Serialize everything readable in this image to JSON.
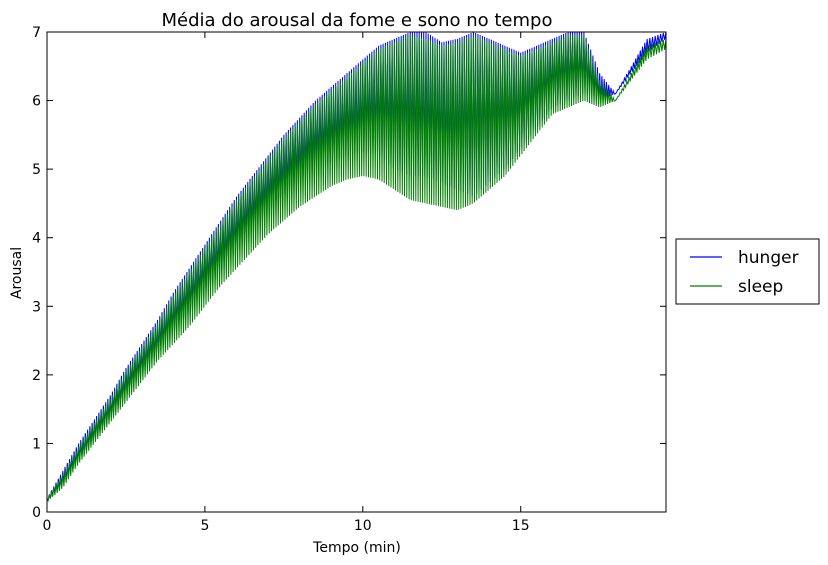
{
  "chart_data": {
    "type": "line",
    "title": "Média do arousal da fome e sono no tempo",
    "xlabel": "Tempo (min)",
    "ylabel": "Arousal",
    "xlim": [
      0,
      19.6
    ],
    "ylim": [
      0,
      7
    ],
    "xticks": [
      0,
      5,
      10,
      15
    ],
    "yticks": [
      0,
      1,
      2,
      3,
      4,
      5,
      6,
      7
    ],
    "grid": false,
    "legend_position": "right",
    "series": [
      {
        "name": "hunger",
        "color": "#0000ff",
        "x": [
          0,
          0.5,
          1,
          1.5,
          2,
          2.5,
          3,
          3.5,
          4,
          4.5,
          5,
          5.5,
          6,
          6.5,
          7,
          7.5,
          8,
          8.5,
          9,
          9.5,
          10,
          10.5,
          11,
          11.5,
          12,
          12.5,
          13,
          13.5,
          14,
          14.5,
          15,
          15.5,
          16,
          16.5,
          17,
          17.5,
          18,
          18.5,
          19,
          19.6
        ],
        "upper": [
          0.2,
          0.6,
          1.0,
          1.35,
          1.7,
          2.1,
          2.45,
          2.8,
          3.2,
          3.55,
          3.9,
          4.25,
          4.6,
          4.9,
          5.2,
          5.5,
          5.75,
          6.0,
          6.2,
          6.4,
          6.6,
          6.8,
          6.9,
          7.0,
          7.0,
          6.85,
          6.9,
          7.0,
          6.9,
          6.8,
          6.7,
          6.8,
          6.9,
          7.0,
          7.0,
          6.4,
          6.1,
          6.5,
          6.9,
          7.0
        ],
        "lower": [
          0.15,
          0.4,
          0.75,
          1.05,
          1.35,
          1.7,
          2.0,
          2.3,
          2.6,
          2.9,
          3.2,
          3.5,
          3.8,
          4.1,
          4.35,
          4.6,
          4.8,
          5.0,
          5.1,
          5.2,
          5.25,
          5.2,
          5.0,
          4.9,
          4.9,
          4.8,
          4.7,
          4.6,
          4.8,
          5.0,
          5.3,
          5.6,
          5.9,
          6.0,
          6.1,
          6.0,
          6.1,
          6.4,
          6.7,
          6.9
        ]
      },
      {
        "name": "sleep",
        "color": "#008000",
        "x": [
          0,
          0.5,
          1,
          1.5,
          2,
          2.5,
          3,
          3.5,
          4,
          4.5,
          5,
          5.5,
          6,
          6.5,
          7,
          7.5,
          8,
          8.5,
          9,
          9.5,
          10,
          10.5,
          11,
          11.5,
          12,
          12.5,
          13,
          13.5,
          14,
          14.5,
          15,
          15.5,
          16,
          16.5,
          17,
          17.5,
          18,
          18.5,
          19,
          19.6
        ],
        "upper": [
          0.2,
          0.55,
          0.95,
          1.3,
          1.65,
          2.05,
          2.4,
          2.75,
          3.15,
          3.5,
          3.85,
          4.2,
          4.55,
          4.85,
          5.15,
          5.45,
          5.7,
          5.95,
          6.15,
          6.35,
          6.55,
          6.75,
          6.85,
          6.95,
          6.9,
          6.8,
          6.85,
          6.95,
          6.85,
          6.75,
          6.65,
          6.75,
          6.85,
          6.95,
          6.95,
          6.3,
          6.0,
          6.4,
          6.8,
          6.9
        ],
        "lower": [
          0.15,
          0.35,
          0.7,
          1.0,
          1.3,
          1.6,
          1.9,
          2.2,
          2.45,
          2.7,
          3.0,
          3.3,
          3.55,
          3.8,
          4.05,
          4.25,
          4.45,
          4.6,
          4.75,
          4.85,
          4.9,
          4.85,
          4.7,
          4.55,
          4.5,
          4.45,
          4.4,
          4.5,
          4.7,
          4.9,
          5.2,
          5.5,
          5.8,
          5.9,
          6.0,
          5.9,
          6.0,
          6.3,
          6.6,
          6.75
        ]
      }
    ]
  }
}
